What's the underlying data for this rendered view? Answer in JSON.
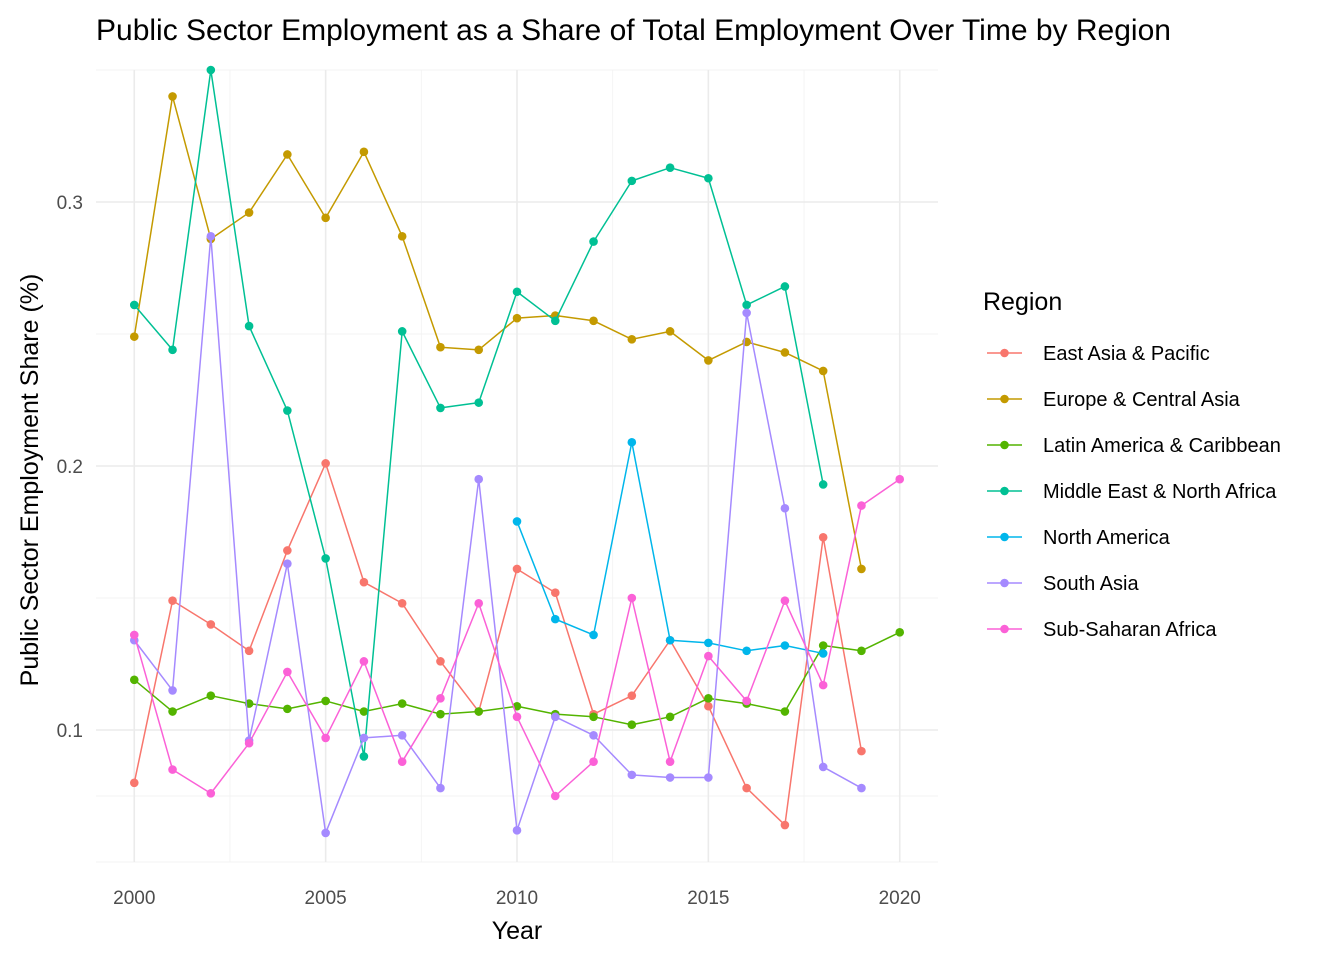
{
  "chart_data": {
    "type": "line",
    "title": "Public Sector Employment as a Share of Total Employment Over Time by Region",
    "xlabel": "Year",
    "ylabel": "Public Sector Employment Share (%)",
    "xlim": [
      1999,
      2021
    ],
    "ylim": [
      0.05,
      0.35
    ],
    "x_ticks": [
      2000,
      2005,
      2010,
      2015,
      2020
    ],
    "y_ticks": [
      0.1,
      0.2,
      0.3
    ],
    "x_tick_labels": [
      "2000",
      "2005",
      "2010",
      "2015",
      "2020"
    ],
    "y_tick_labels": [
      "0.1",
      "0.2",
      "0.3"
    ],
    "grid": true,
    "legend": {
      "title": "Region",
      "position": "right"
    },
    "series": [
      {
        "name": "East Asia & Pacific",
        "color": "#F8766D",
        "points": [
          [
            2000,
            0.08
          ],
          [
            2001,
            0.149
          ],
          [
            2002,
            0.14
          ],
          [
            2003,
            0.13
          ],
          [
            2004,
            0.168
          ],
          [
            2005,
            0.201
          ],
          [
            2006,
            0.156
          ],
          [
            2007,
            0.148
          ],
          [
            2008,
            0.126
          ],
          [
            2009,
            0.107
          ],
          [
            2010,
            0.161
          ],
          [
            2011,
            0.152
          ],
          [
            2012,
            0.106
          ],
          [
            2013,
            0.113
          ],
          [
            2014,
            0.134
          ],
          [
            2015,
            0.109
          ],
          [
            2016,
            0.078
          ],
          [
            2017,
            0.064
          ],
          [
            2018,
            0.173
          ],
          [
            2019,
            0.092
          ]
        ]
      },
      {
        "name": "Europe & Central Asia",
        "color": "#C49A00",
        "points": [
          [
            2000,
            0.249
          ],
          [
            2001,
            0.34
          ],
          [
            2002,
            0.286
          ],
          [
            2003,
            0.296
          ],
          [
            2004,
            0.318
          ],
          [
            2005,
            0.294
          ],
          [
            2006,
            0.319
          ],
          [
            2007,
            0.287
          ],
          [
            2008,
            0.245
          ],
          [
            2009,
            0.244
          ],
          [
            2010,
            0.256
          ],
          [
            2011,
            0.257
          ],
          [
            2012,
            0.255
          ],
          [
            2013,
            0.248
          ],
          [
            2014,
            0.251
          ],
          [
            2015,
            0.24
          ],
          [
            2016,
            0.247
          ],
          [
            2017,
            0.243
          ],
          [
            2018,
            0.236
          ],
          [
            2019,
            0.161
          ]
        ]
      },
      {
        "name": "Latin America & Caribbean",
        "color": "#53B400",
        "points": [
          [
            2000,
            0.119
          ],
          [
            2001,
            0.107
          ],
          [
            2002,
            0.113
          ],
          [
            2003,
            0.11
          ],
          [
            2004,
            0.108
          ],
          [
            2005,
            0.111
          ],
          [
            2006,
            0.107
          ],
          [
            2007,
            0.11
          ],
          [
            2008,
            0.106
          ],
          [
            2009,
            0.107
          ],
          [
            2010,
            0.109
          ],
          [
            2011,
            0.106
          ],
          [
            2012,
            0.105
          ],
          [
            2013,
            0.102
          ],
          [
            2014,
            0.105
          ],
          [
            2015,
            0.112
          ],
          [
            2016,
            0.11
          ],
          [
            2017,
            0.107
          ],
          [
            2018,
            0.132
          ],
          [
            2019,
            0.13
          ],
          [
            2020,
            0.137
          ]
        ]
      },
      {
        "name": "Middle East & North Africa",
        "color": "#00C094",
        "points": [
          [
            2000,
            0.261
          ],
          [
            2001,
            0.244
          ],
          [
            2002,
            0.35
          ],
          [
            2003,
            0.253
          ],
          [
            2004,
            0.221
          ],
          [
            2005,
            0.165
          ],
          [
            2006,
            0.09
          ],
          [
            2007,
            0.251
          ],
          [
            2008,
            0.222
          ],
          [
            2009,
            0.224
          ],
          [
            2010,
            0.266
          ],
          [
            2011,
            0.255
          ],
          [
            2012,
            0.285
          ],
          [
            2013,
            0.308
          ],
          [
            2014,
            0.313
          ],
          [
            2015,
            0.309
          ],
          [
            2016,
            0.261
          ],
          [
            2017,
            0.268
          ],
          [
            2018,
            0.193
          ]
        ]
      },
      {
        "name": "North America",
        "color": "#00B6EB",
        "points": [
          [
            2010,
            0.179
          ],
          [
            2011,
            0.142
          ],
          [
            2012,
            0.136
          ],
          [
            2013,
            0.209
          ],
          [
            2014,
            0.134
          ],
          [
            2015,
            0.133
          ],
          [
            2016,
            0.13
          ],
          [
            2017,
            0.132
          ],
          [
            2018,
            0.129
          ]
        ]
      },
      {
        "name": "South Asia",
        "color": "#A58AFF",
        "points": [
          [
            2000,
            0.134
          ],
          [
            2001,
            0.115
          ],
          [
            2002,
            0.287
          ],
          [
            2003,
            0.096
          ],
          [
            2004,
            0.163
          ],
          [
            2005,
            0.061
          ],
          [
            2006,
            0.097
          ],
          [
            2007,
            0.098
          ],
          [
            2008,
            0.078
          ],
          [
            2009,
            0.195
          ],
          [
            2010,
            0.062
          ],
          [
            2011,
            0.105
          ],
          [
            2012,
            0.098
          ],
          [
            2013,
            0.083
          ],
          [
            2014,
            0.082
          ],
          [
            2015,
            0.082
          ],
          [
            2016,
            0.258
          ],
          [
            2017,
            0.184
          ],
          [
            2018,
            0.086
          ],
          [
            2019,
            0.078
          ]
        ]
      },
      {
        "name": "Sub-Saharan Africa",
        "color": "#FB61D7",
        "points": [
          [
            2000,
            0.136
          ],
          [
            2001,
            0.085
          ],
          [
            2002,
            0.076
          ],
          [
            2003,
            0.095
          ],
          [
            2004,
            0.122
          ],
          [
            2005,
            0.097
          ],
          [
            2006,
            0.126
          ],
          [
            2007,
            0.088
          ],
          [
            2008,
            0.112
          ],
          [
            2009,
            0.148
          ],
          [
            2010,
            0.105
          ],
          [
            2011,
            0.075
          ],
          [
            2012,
            0.088
          ],
          [
            2013,
            0.15
          ],
          [
            2014,
            0.088
          ],
          [
            2015,
            0.128
          ],
          [
            2016,
            0.111
          ],
          [
            2017,
            0.149
          ],
          [
            2018,
            0.117
          ],
          [
            2019,
            0.185
          ],
          [
            2020,
            0.195
          ]
        ]
      }
    ]
  }
}
